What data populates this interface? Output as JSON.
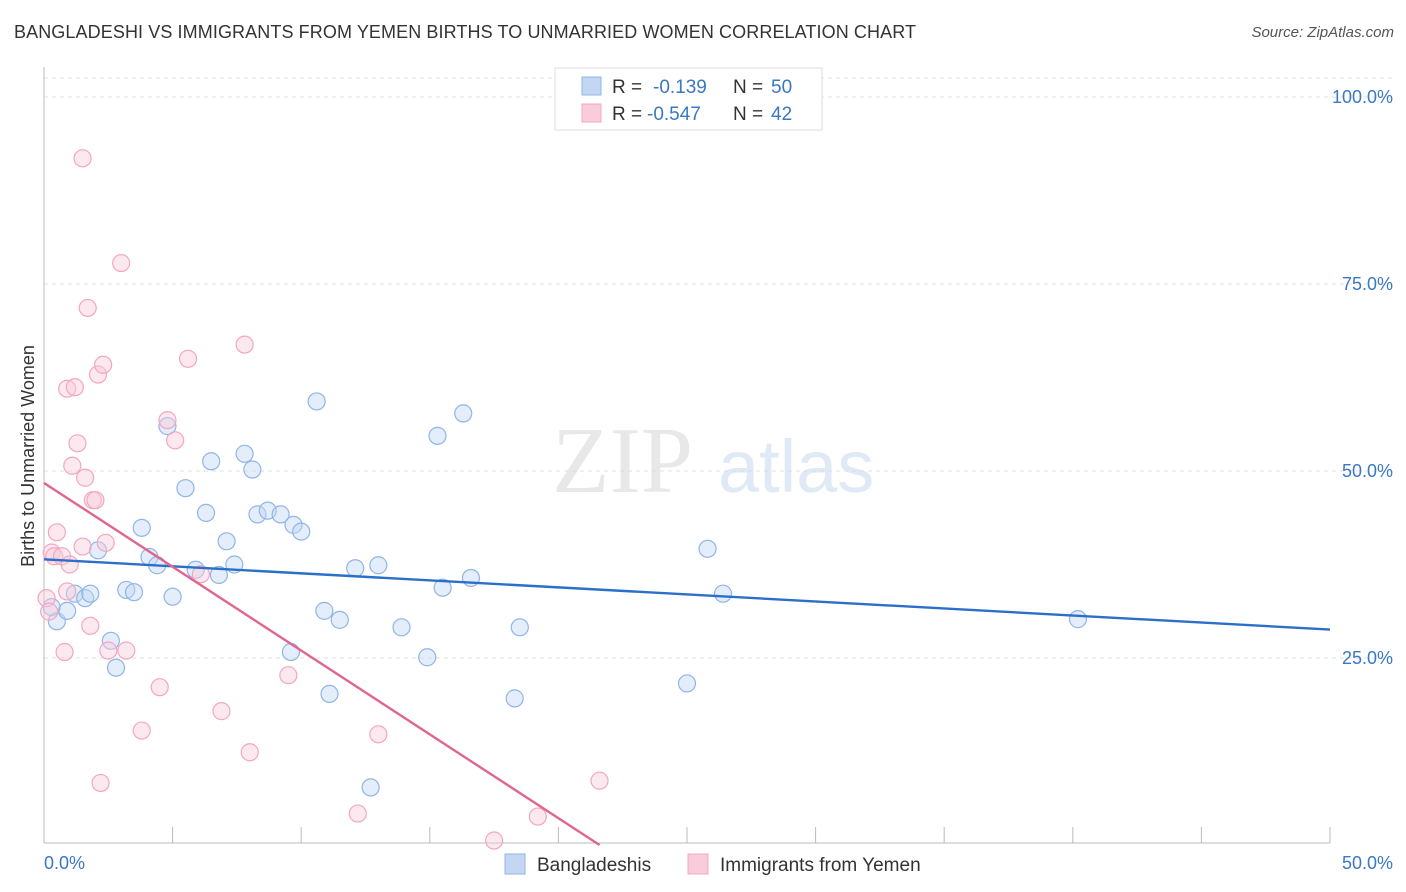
{
  "header": {
    "title": "BANGLADESHI VS IMMIGRANTS FROM YEMEN BIRTHS TO UNMARRIED WOMEN CORRELATION CHART",
    "source": "Source: ZipAtlas.com"
  },
  "watermark": {
    "zip": "ZIP",
    "atlas": "atlas"
  },
  "legend": {
    "r_label": "R =",
    "n_label": "N =",
    "rows": [
      {
        "r": "-0.139",
        "n": "50"
      },
      {
        "r": "-0.547",
        "n": "42"
      }
    ]
  },
  "chart_data": {
    "type": "scatter",
    "title": "BANGLADESHI VS IMMIGRANTS FROM YEMEN BIRTHS TO UNMARRIED WOMEN CORRELATION CHART",
    "xlabel": "",
    "ylabel": "Births to Unmarried Women",
    "xlim": [
      0,
      50
    ],
    "ylim": [
      0,
      100
    ],
    "x_tick_labels": [
      "0.0%",
      "50.0%"
    ],
    "y_ticks": [
      {
        "value": 100,
        "label": "100.0%"
      },
      {
        "value": 75,
        "label": "75.0%"
      },
      {
        "value": 50,
        "label": "50.0%"
      },
      {
        "value": 25,
        "label": "25.0%"
      }
    ],
    "series": [
      {
        "name": "Bangladeshis",
        "color": "#8fb5e8",
        "line_color": "#2a6fc9",
        "r": -0.139,
        "n": 50,
        "trend": {
          "x": [
            0.0,
            50.0
          ],
          "y": [
            38.2,
            28.8
          ]
        },
        "points": [
          [
            0.3,
            31.8
          ],
          [
            0.5,
            29.9
          ],
          [
            0.9,
            31.3
          ],
          [
            1.2,
            33.6
          ],
          [
            1.6,
            33.0
          ],
          [
            1.8,
            33.6
          ],
          [
            2.1,
            39.4
          ],
          [
            2.6,
            27.3
          ],
          [
            2.8,
            23.7
          ],
          [
            3.2,
            34.1
          ],
          [
            3.5,
            33.8
          ],
          [
            3.8,
            42.4
          ],
          [
            4.1,
            38.5
          ],
          [
            4.4,
            37.4
          ],
          [
            4.8,
            56.0
          ],
          [
            5.0,
            33.2
          ],
          [
            5.5,
            47.7
          ],
          [
            5.9,
            36.8
          ],
          [
            6.3,
            44.4
          ],
          [
            6.5,
            51.3
          ],
          [
            6.8,
            36.1
          ],
          [
            7.1,
            40.6
          ],
          [
            7.4,
            37.5
          ],
          [
            7.8,
            52.3
          ],
          [
            8.1,
            50.2
          ],
          [
            8.3,
            44.2
          ],
          [
            8.7,
            44.7
          ],
          [
            9.2,
            44.2
          ],
          [
            9.6,
            25.8
          ],
          [
            9.7,
            42.8
          ],
          [
            10.0,
            41.9
          ],
          [
            10.6,
            59.3
          ],
          [
            10.9,
            31.3
          ],
          [
            11.1,
            20.2
          ],
          [
            11.5,
            30.1
          ],
          [
            12.1,
            37.0
          ],
          [
            12.7,
            7.7
          ],
          [
            13.0,
            37.4
          ],
          [
            13.9,
            29.1
          ],
          [
            14.9,
            25.1
          ],
          [
            15.3,
            54.7
          ],
          [
            15.5,
            34.4
          ],
          [
            16.3,
            57.7
          ],
          [
            16.6,
            35.7
          ],
          [
            18.3,
            19.6
          ],
          [
            18.5,
            29.1
          ],
          [
            25.0,
            21.6
          ],
          [
            25.8,
            39.6
          ],
          [
            26.4,
            33.6
          ],
          [
            40.2,
            30.2
          ]
        ]
      },
      {
        "name": "Immigrants from Yemen",
        "color": "#f4a6c0",
        "line_color": "#e0668f",
        "r": -0.547,
        "n": 42,
        "trend": {
          "x": [
            0.0,
            21.6
          ],
          "y": [
            48.4,
            0.0
          ]
        },
        "points": [
          [
            0.1,
            33.0
          ],
          [
            0.2,
            31.2
          ],
          [
            0.3,
            39.1
          ],
          [
            0.4,
            38.6
          ],
          [
            0.5,
            41.8
          ],
          [
            0.7,
            38.6
          ],
          [
            0.8,
            25.8
          ],
          [
            0.9,
            33.9
          ],
          [
            0.9,
            61.0
          ],
          [
            1.0,
            37.5
          ],
          [
            1.1,
            50.7
          ],
          [
            1.2,
            61.2
          ],
          [
            1.3,
            53.7
          ],
          [
            1.5,
            39.9
          ],
          [
            1.5,
            91.8
          ],
          [
            1.6,
            49.1
          ],
          [
            1.7,
            71.8
          ],
          [
            1.8,
            29.3
          ],
          [
            1.9,
            46.1
          ],
          [
            2.0,
            46.1
          ],
          [
            2.1,
            62.9
          ],
          [
            2.2,
            8.3
          ],
          [
            2.3,
            64.2
          ],
          [
            2.4,
            40.4
          ],
          [
            2.5,
            26.0
          ],
          [
            3.0,
            77.8
          ],
          [
            3.2,
            26.0
          ],
          [
            3.8,
            15.3
          ],
          [
            4.5,
            21.1
          ],
          [
            4.8,
            56.8
          ],
          [
            5.1,
            54.1
          ],
          [
            5.6,
            65.0
          ],
          [
            6.1,
            36.2
          ],
          [
            6.9,
            17.9
          ],
          [
            7.8,
            66.9
          ],
          [
            8.0,
            12.4
          ],
          [
            9.5,
            22.7
          ],
          [
            12.2,
            4.2
          ],
          [
            13.0,
            14.8
          ],
          [
            17.5,
            0.6
          ],
          [
            19.2,
            3.8
          ],
          [
            21.6,
            8.6
          ]
        ]
      }
    ]
  }
}
